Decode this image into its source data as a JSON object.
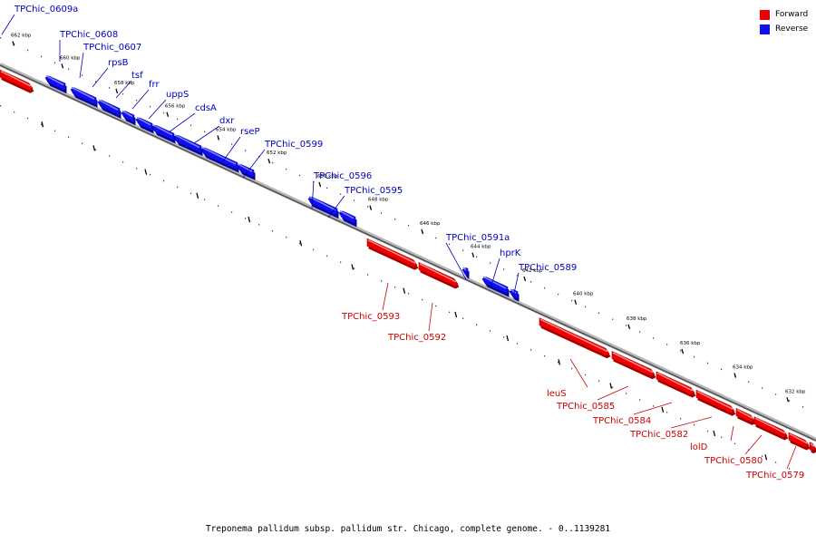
{
  "colors": {
    "forward": "#ee0000",
    "forward_light": "#ff8080",
    "forward_dark": "#a00000",
    "reverse": "#1010ee",
    "reverse_light": "#8080ff",
    "reverse_dark": "#0000a0",
    "forward_label": "#cc0000",
    "reverse_label": "#0000bb"
  },
  "legend": [
    {
      "label": "Forward",
      "color": "#ee0000"
    },
    {
      "label": "Reverse",
      "color": "#1010ee"
    }
  ],
  "caption": "Treponema pallidum subsp. pallidum str. Chicago, complete genome. - 0..1139281",
  "ticks": [
    "662 kbp",
    "660 kbp",
    "658 kbp",
    "656 kbp",
    "654 kbp",
    "652 kbp",
    "650 kbp",
    "648 kbp",
    "646 kbp",
    "644 kbp",
    "642 kbp",
    "640 kbp",
    "638 kbp",
    "636 kbp",
    "634 kbp",
    "632 kbp"
  ],
  "genes": [
    {
      "label": "TPChic_0609a",
      "strand": "reverse"
    },
    {
      "label": "TPChic_0608",
      "strand": "reverse"
    },
    {
      "label": "TPChic_0607",
      "strand": "reverse"
    },
    {
      "label": "rpsB",
      "strand": "reverse"
    },
    {
      "label": "tsf",
      "strand": "reverse"
    },
    {
      "label": "frr",
      "strand": "reverse"
    },
    {
      "label": "uppS",
      "strand": "reverse"
    },
    {
      "label": "cdsA",
      "strand": "reverse"
    },
    {
      "label": "dxr",
      "strand": "reverse"
    },
    {
      "label": "rseP",
      "strand": "reverse"
    },
    {
      "label": "TPChic_0599",
      "strand": "reverse"
    },
    {
      "label": "TPChic_0596",
      "strand": "reverse"
    },
    {
      "label": "TPChic_0595",
      "strand": "reverse"
    },
    {
      "label": "TPChic_0591a",
      "strand": "reverse"
    },
    {
      "label": "hprK",
      "strand": "reverse"
    },
    {
      "label": "TPChic_0589",
      "strand": "reverse"
    },
    {
      "label": "TPChic_0593",
      "strand": "forward"
    },
    {
      "label": "TPChic_0592",
      "strand": "forward"
    },
    {
      "label": "leuS",
      "strand": "forward"
    },
    {
      "label": "TPChic_0585",
      "strand": "forward"
    },
    {
      "label": "TPChic_0584",
      "strand": "forward"
    },
    {
      "label": "TPChic_0582",
      "strand": "forward"
    },
    {
      "label": "lolD",
      "strand": "forward"
    },
    {
      "label": "TPChic_0580",
      "strand": "forward"
    },
    {
      "label": "TPChic_0579",
      "strand": "forward"
    }
  ]
}
